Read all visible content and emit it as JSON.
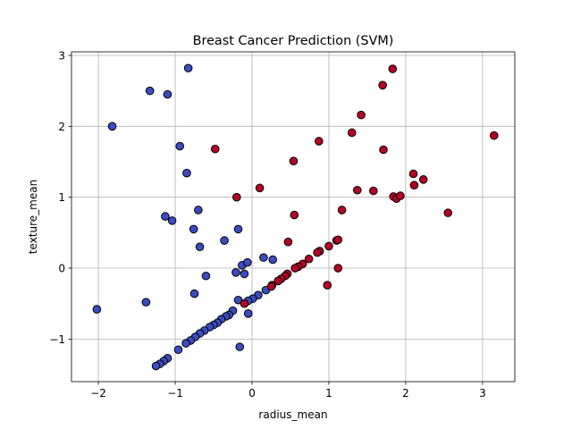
{
  "chart_data": {
    "type": "scatter",
    "title": "Breast Cancer Prediction (SVM)",
    "xlabel": "radius_mean",
    "ylabel": "texture_mean",
    "xlim": [
      -2.35,
      3.42
    ],
    "ylim": [
      -1.6,
      3.05
    ],
    "xticks": [
      {
        "value": -2,
        "label": "−2"
      },
      {
        "value": -1,
        "label": "−1"
      },
      {
        "value": 0,
        "label": "0"
      },
      {
        "value": 1,
        "label": "1"
      },
      {
        "value": 2,
        "label": "2"
      },
      {
        "value": 3,
        "label": "3"
      }
    ],
    "yticks": [
      {
        "value": -1,
        "label": "−1"
      },
      {
        "value": 0,
        "label": "0"
      },
      {
        "value": 1,
        "label": "1"
      },
      {
        "value": 2,
        "label": "2"
      },
      {
        "value": 3,
        "label": "3"
      }
    ],
    "grid": true,
    "colors": {
      "class_0": "#3b4cc0",
      "class_1": "#b40426",
      "edge": "#000000"
    },
    "series": [
      {
        "class": 0,
        "color": "#3b4cc0",
        "points": [
          [
            -2.02,
            -0.58
          ],
          [
            -1.82,
            2.0
          ],
          [
            -1.33,
            2.5
          ],
          [
            -1.1,
            2.45
          ],
          [
            -0.83,
            2.82
          ],
          [
            -0.94,
            1.72
          ],
          [
            -0.85,
            1.34
          ],
          [
            -1.13,
            0.73
          ],
          [
            -1.04,
            0.67
          ],
          [
            -0.7,
            0.82
          ],
          [
            -0.76,
            0.55
          ],
          [
            -0.68,
            0.3
          ],
          [
            -0.6,
            -0.11
          ],
          [
            -0.36,
            0.39
          ],
          [
            -0.18,
            0.55
          ],
          [
            -0.75,
            -0.36
          ],
          [
            -1.38,
            -0.48
          ],
          [
            -0.13,
            0.04
          ],
          [
            -0.06,
            0.08
          ],
          [
            0.15,
            0.15
          ],
          [
            0.27,
            0.12
          ],
          [
            -0.21,
            -0.06
          ],
          [
            -0.1,
            -0.08
          ],
          [
            0.18,
            -0.31
          ],
          [
            0.08,
            -0.38
          ],
          [
            0.01,
            -0.43
          ],
          [
            -0.05,
            -0.46
          ],
          [
            -0.18,
            -0.45
          ],
          [
            -0.05,
            -0.64
          ],
          [
            -0.25,
            -0.6
          ],
          [
            -0.3,
            -0.66
          ],
          [
            -0.34,
            -0.68
          ],
          [
            -0.4,
            -0.72
          ],
          [
            -0.45,
            -0.77
          ],
          [
            -0.5,
            -0.8
          ],
          [
            -0.55,
            -0.83
          ],
          [
            -0.62,
            -0.88
          ],
          [
            -0.68,
            -0.92
          ],
          [
            -0.74,
            -0.97
          ],
          [
            -0.8,
            -1.02
          ],
          [
            -0.86,
            -1.06
          ],
          [
            -0.96,
            -1.15
          ],
          [
            -1.1,
            -1.27
          ],
          [
            -1.15,
            -1.31
          ],
          [
            -1.2,
            -1.35
          ],
          [
            -1.25,
            -1.38
          ],
          [
            -0.16,
            -1.11
          ]
        ]
      },
      {
        "class": 1,
        "color": "#b40426",
        "points": [
          [
            -0.48,
            1.68
          ],
          [
            -0.2,
            1.0
          ],
          [
            0.1,
            1.13
          ],
          [
            0.54,
            1.51
          ],
          [
            0.87,
            1.79
          ],
          [
            1.3,
            1.91
          ],
          [
            1.42,
            2.16
          ],
          [
            1.7,
            2.58
          ],
          [
            1.83,
            2.81
          ],
          [
            1.71,
            1.67
          ],
          [
            3.15,
            1.87
          ],
          [
            2.1,
            1.33
          ],
          [
            2.11,
            1.17
          ],
          [
            2.23,
            1.25
          ],
          [
            1.37,
            1.1
          ],
          [
            1.58,
            1.09
          ],
          [
            1.84,
            1.01
          ],
          [
            1.88,
            0.98
          ],
          [
            1.93,
            1.02
          ],
          [
            2.55,
            0.78
          ],
          [
            1.17,
            0.82
          ],
          [
            0.55,
            0.75
          ],
          [
            0.47,
            0.37
          ],
          [
            1.1,
            0.39
          ],
          [
            1.12,
            0.4
          ],
          [
            1.0,
            0.31
          ],
          [
            0.88,
            0.24
          ],
          [
            0.85,
            0.22
          ],
          [
            0.74,
            0.13
          ],
          [
            0.66,
            0.06
          ],
          [
            0.6,
            0.02
          ],
          [
            0.56,
            0.0
          ],
          [
            0.46,
            -0.08
          ],
          [
            0.43,
            -0.11
          ],
          [
            0.38,
            -0.15
          ],
          [
            0.34,
            -0.18
          ],
          [
            0.26,
            -0.24
          ],
          [
            0.25,
            -0.26
          ],
          [
            1.12,
            0.0
          ],
          [
            0.98,
            -0.24
          ],
          [
            -0.1,
            -0.5
          ]
        ]
      }
    ]
  }
}
